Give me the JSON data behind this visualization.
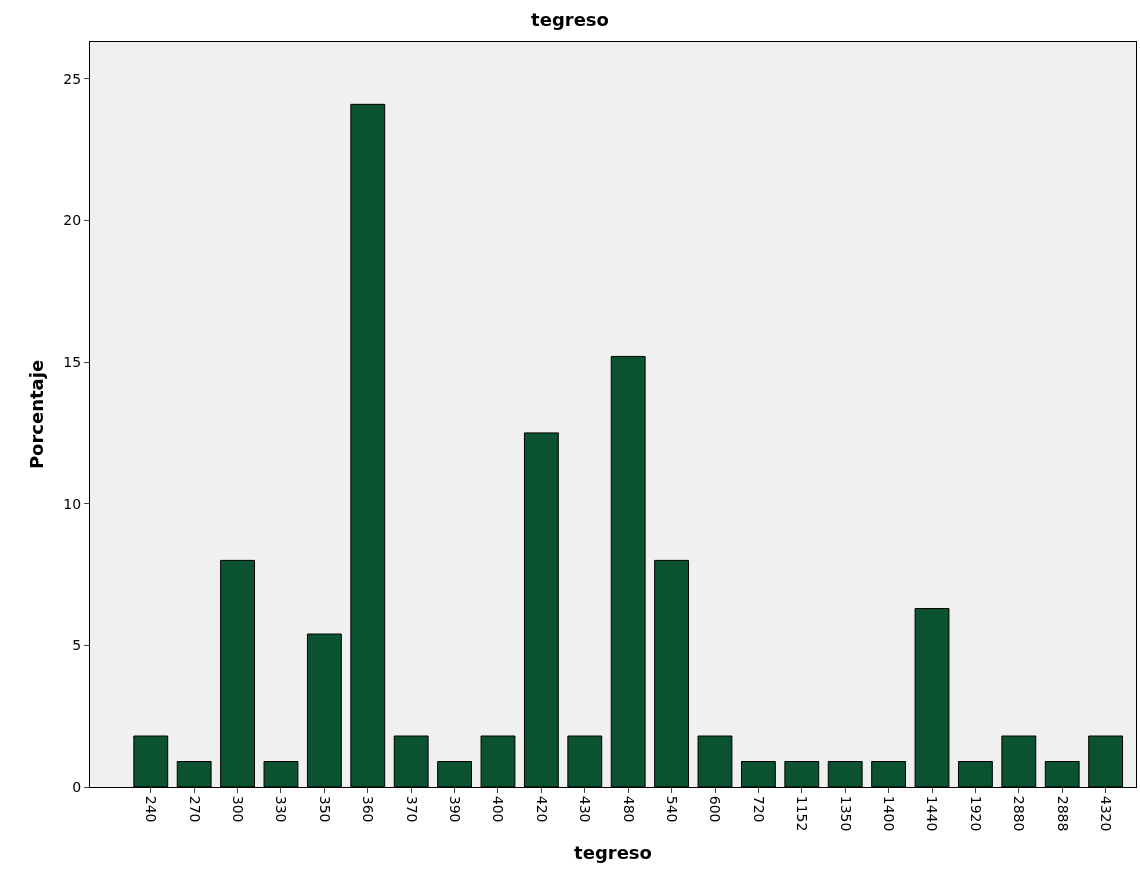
{
  "chart_data": {
    "type": "bar",
    "title": "tegreso",
    "xlabel": "tegreso",
    "ylabel": "Porcentaje",
    "categories": [
      "240",
      "270",
      "300",
      "330",
      "350",
      "360",
      "370",
      "390",
      "400",
      "420",
      "430",
      "480",
      "540",
      "600",
      "720",
      "1152",
      "1350",
      "1400",
      "1440",
      "1920",
      "2880",
      "2888",
      "4320"
    ],
    "values": [
      1.8,
      0.9,
      8.0,
      0.9,
      5.4,
      24.1,
      1.8,
      0.9,
      1.8,
      12.5,
      1.8,
      15.2,
      8.0,
      1.8,
      0.9,
      0.9,
      0.9,
      0.9,
      6.3,
      0.9,
      1.8,
      0.9,
      1.8
    ],
    "color": "#0b5330",
    "ylim": [
      0,
      26.3
    ],
    "yticks": [
      0,
      5,
      10,
      15,
      20,
      25
    ],
    "grid": false,
    "legend": false
  }
}
